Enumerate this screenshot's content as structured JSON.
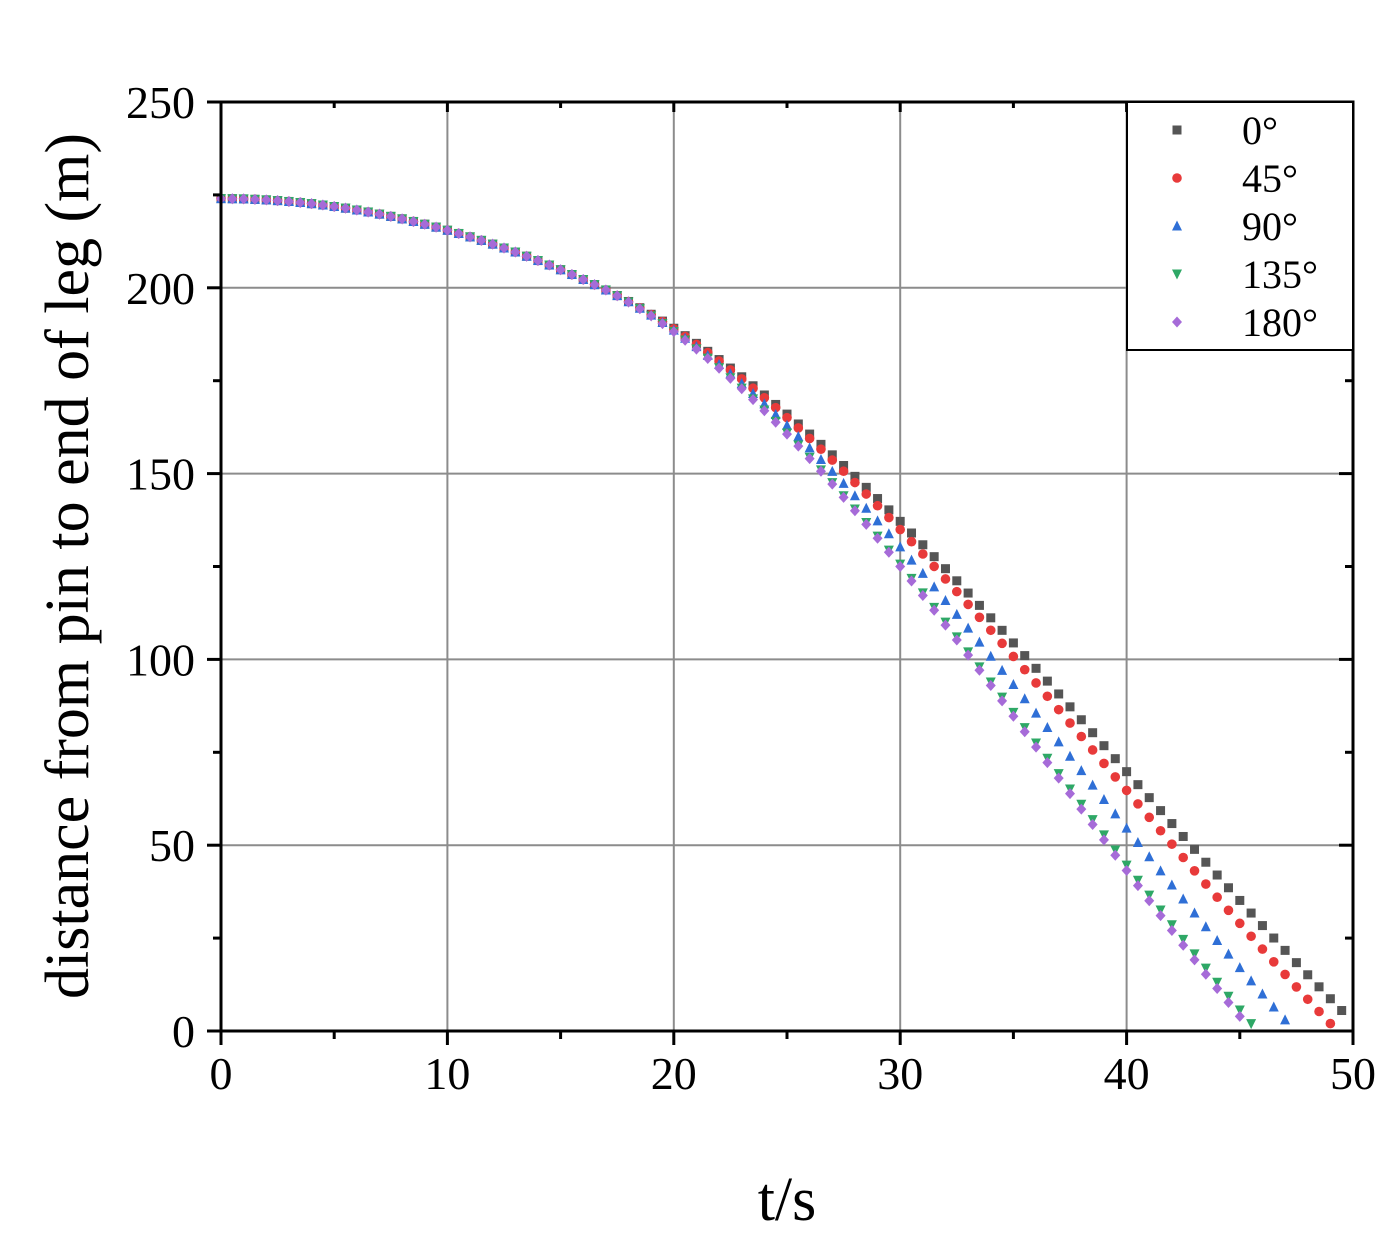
{
  "chart_data": {
    "type": "scatter",
    "title": "",
    "xlabel": "t/s",
    "ylabel": "distance from pin to end of leg (m)",
    "xlim": [
      0,
      50
    ],
    "ylim": [
      0,
      250
    ],
    "x_ticks": [
      "0",
      "10",
      "20",
      "30",
      "40",
      "50"
    ],
    "y_ticks": [
      "0",
      "50",
      "100",
      "150",
      "200",
      "250"
    ],
    "grid": true,
    "legend_position": "top-right",
    "series": [
      {
        "name": "0°",
        "marker": "square",
        "color": "#555555",
        "t_end": 49.9,
        "t_knee": 16.8,
        "end_y": 3
      },
      {
        "name": "45°",
        "marker": "circle",
        "color": "#e83a3a",
        "t_end": 49.0,
        "t_knee": 16.8,
        "end_y": 2
      },
      {
        "name": "90°",
        "marker": "triangle-up",
        "color": "#2f6fd6",
        "t_end": 47.0,
        "t_knee": 16.8,
        "end_y": 3
      },
      {
        "name": "135°",
        "marker": "triangle-down",
        "color": "#2ea866",
        "t_end": 45.5,
        "t_knee": 16.8,
        "end_y": 2
      },
      {
        "name": "180°",
        "marker": "diamond",
        "color": "#a66bd8",
        "t_end": 45.4,
        "t_knee": 16.8,
        "end_y": 1
      }
    ],
    "common": {
      "y0": 224,
      "t_step": 0.5,
      "knee_value": 200,
      "knee_slope": -3.0
    }
  }
}
